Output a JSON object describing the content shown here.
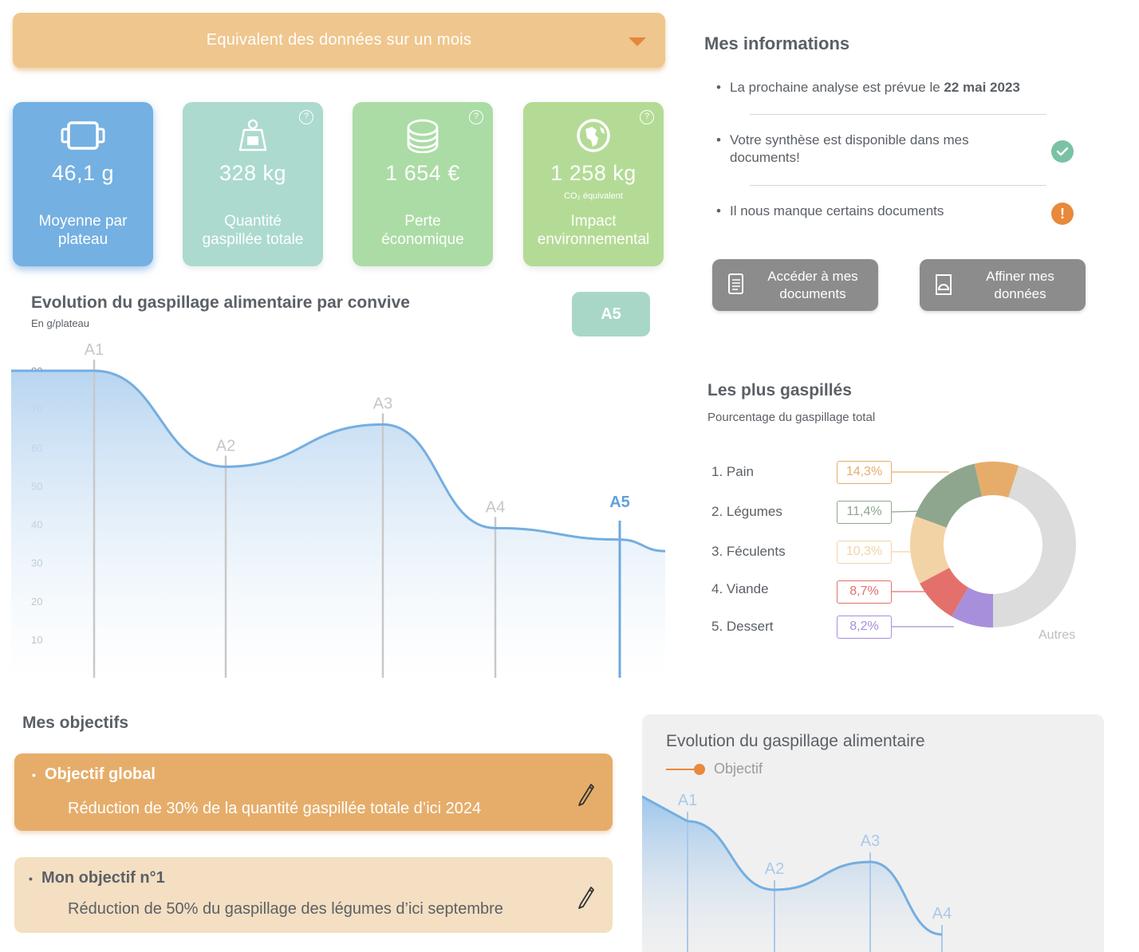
{
  "period": {
    "label": "Equivalent des données sur un mois"
  },
  "cards": [
    {
      "value": "46,1 g",
      "sub": "",
      "label_line1": "Moyenne par",
      "label_line2": "plateau",
      "icon": "tray-icon",
      "color": "#74b0e2"
    },
    {
      "value": "328 kg",
      "sub": "",
      "label_line1": "Quantité",
      "label_line2": "gaspillée totale",
      "icon": "weight-icon",
      "color": "#a8d9cd"
    },
    {
      "value": "1 654 €",
      "sub": "",
      "label_line1": "Perte",
      "label_line2": "économique",
      "icon": "coins-icon",
      "color": "#abdca5"
    },
    {
      "value": "1 258 kg",
      "sub": "CO₂ équivalent",
      "label_line1": "Impact",
      "label_line2": "environnemental",
      "icon": "globe-icon",
      "color": "#b4db95"
    }
  ],
  "help_symbol": "?",
  "evolution": {
    "title": "Evolution du gaspillage alimentaire par convive",
    "unit": "En g/plateau",
    "selected_button": "A5"
  },
  "chart_data": [
    {
      "type": "area",
      "title": "Evolution du gaspillage alimentaire par convive",
      "ylabel": "En g/plateau",
      "ylim": [
        0,
        80
      ],
      "yticks": [
        10,
        20,
        30,
        40,
        50,
        60,
        70,
        80
      ],
      "categories": [
        "A1",
        "A2",
        "A3",
        "A4",
        "A5"
      ],
      "values": [
        80,
        55,
        66,
        39,
        36
      ],
      "highlight": "A5",
      "grid": false
    },
    {
      "type": "pie",
      "title": "Les plus gaspillés",
      "subtitle": "Pourcentage du gaspillage total",
      "labels": [
        "1. Pain",
        "2. Légumes",
        "3. Féculents",
        "4. Viande",
        "5. Dessert"
      ],
      "values": [
        14.3,
        11.4,
        10.3,
        8.7,
        8.2
      ],
      "display": [
        "14,3%",
        "11,4%",
        "10,3%",
        "8,7%",
        "8,2%"
      ],
      "colors": [
        "#e6ad6a",
        "#8ea68e",
        "#f2d3a6",
        "#e4706c",
        "#a88fdc"
      ],
      "others_label": "Autres",
      "others_color": "#dcdcdc"
    },
    {
      "type": "area",
      "title": "Evolution du gaspillage alimentaire",
      "legend": [
        "Objectif"
      ],
      "categories": [
        "A1",
        "A2",
        "A3",
        "A4"
      ],
      "values": [
        80,
        55,
        66,
        39
      ],
      "ylim": [
        0,
        80
      ]
    }
  ],
  "info": {
    "title": "Mes informations",
    "bullet": "•",
    "item1_pre": "La prochaine analyse est prévue le ",
    "item1_date": "22 mai 2023",
    "item2_line1": "Votre synthèse est disponible dans mes",
    "item2_line2": "documents!",
    "item3": "Il nous manque certains documents",
    "warn_symbol": "!"
  },
  "buttons": {
    "documents_line1": "Accéder à mes",
    "documents_line2": "documents",
    "refine_line1": "Affiner mes",
    "refine_line2": "données"
  },
  "objectives": {
    "title": "Mes objectifs",
    "global_title": "Objectif global",
    "global_desc": "Réduction de 30% de la quantité gaspillée totale d’ici 2024",
    "obj1_title": "Mon objectif n°1",
    "obj1_desc": "Réduction de 50% du gaspillage des légumes d’ici septembre"
  }
}
